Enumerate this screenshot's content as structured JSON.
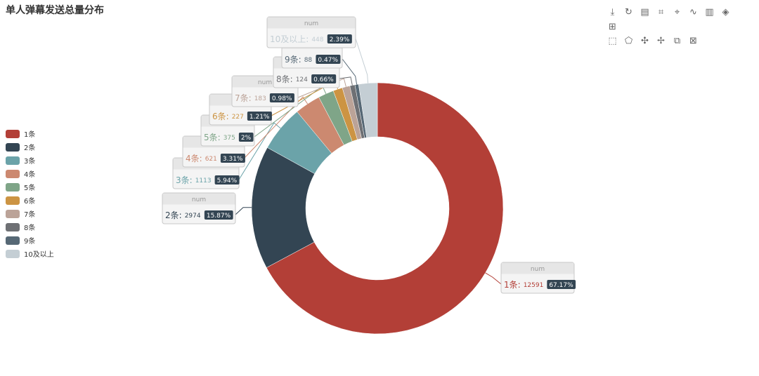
{
  "title": "单人弹幕发送总量分布",
  "toolbox": {
    "row1": [
      "download-icon",
      "refresh-icon",
      "data-view-icon",
      "zoom-icon",
      "zoom-reset-icon",
      "line-chart-icon",
      "bar-chart-icon",
      "stack-icon",
      "tiled-icon"
    ],
    "row2": [
      "rect-select-icon",
      "polygon-select-icon",
      "keep-select-icon",
      "clear-select-icon",
      "brush-icon",
      "clear-brush-icon"
    ]
  },
  "chart_data": {
    "type": "pie",
    "variant": "donut",
    "series_name": "num",
    "categories": [
      "1条",
      "2条",
      "3条",
      "4条",
      "5条",
      "6条",
      "7条",
      "8条",
      "9条",
      "10及以上"
    ],
    "values": [
      12591,
      2974,
      1113,
      621,
      375,
      227,
      183,
      124,
      88,
      448
    ],
    "percent_labels": [
      "67.17%",
      "15.87%",
      "5.94%",
      "3.31%",
      "2%",
      "1.21%",
      "0.98%",
      "0.66%",
      "0.47%",
      "2.39%"
    ],
    "colors": [
      "#b33f37",
      "#334553",
      "#6ba3a9",
      "#cc8970",
      "#7fa588",
      "#cc9443",
      "#bba398",
      "#6e7074",
      "#566875",
      "#c4ced4"
    ],
    "legend_position": "left"
  }
}
